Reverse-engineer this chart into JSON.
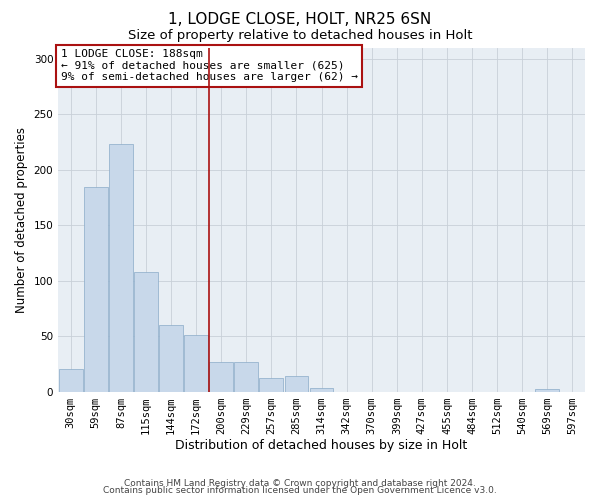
{
  "title": "1, LODGE CLOSE, HOLT, NR25 6SN",
  "subtitle": "Size of property relative to detached houses in Holt",
  "xlabel": "Distribution of detached houses by size in Holt",
  "ylabel": "Number of detached properties",
  "bar_color": "#c8d8ea",
  "bar_edge_color": "#8aaac8",
  "grid_color": "#c8d0d8",
  "background_color": "#e8eef4",
  "vline_color": "#aa1111",
  "vline_x_index": 6,
  "annotation_text": "1 LODGE CLOSE: 188sqm\n← 91% of detached houses are smaller (625)\n9% of semi-detached houses are larger (62) →",
  "categories": [
    "30sqm",
    "59sqm",
    "87sqm",
    "115sqm",
    "144sqm",
    "172sqm",
    "200sqm",
    "229sqm",
    "257sqm",
    "285sqm",
    "314sqm",
    "342sqm",
    "370sqm",
    "399sqm",
    "427sqm",
    "455sqm",
    "484sqm",
    "512sqm",
    "540sqm",
    "569sqm",
    "597sqm"
  ],
  "values": [
    20,
    184,
    223,
    108,
    60,
    51,
    27,
    27,
    12,
    14,
    3,
    0,
    0,
    0,
    0,
    0,
    0,
    0,
    0,
    2,
    0
  ],
  "ylim": [
    0,
    310
  ],
  "yticks": [
    0,
    50,
    100,
    150,
    200,
    250,
    300
  ],
  "footer_line1": "Contains HM Land Registry data © Crown copyright and database right 2024.",
  "footer_line2": "Contains public sector information licensed under the Open Government Licence v3.0.",
  "title_fontsize": 11,
  "subtitle_fontsize": 9.5,
  "xlabel_fontsize": 9,
  "ylabel_fontsize": 8.5,
  "tick_fontsize": 7.5,
  "annot_fontsize": 8,
  "footer_fontsize": 6.5
}
